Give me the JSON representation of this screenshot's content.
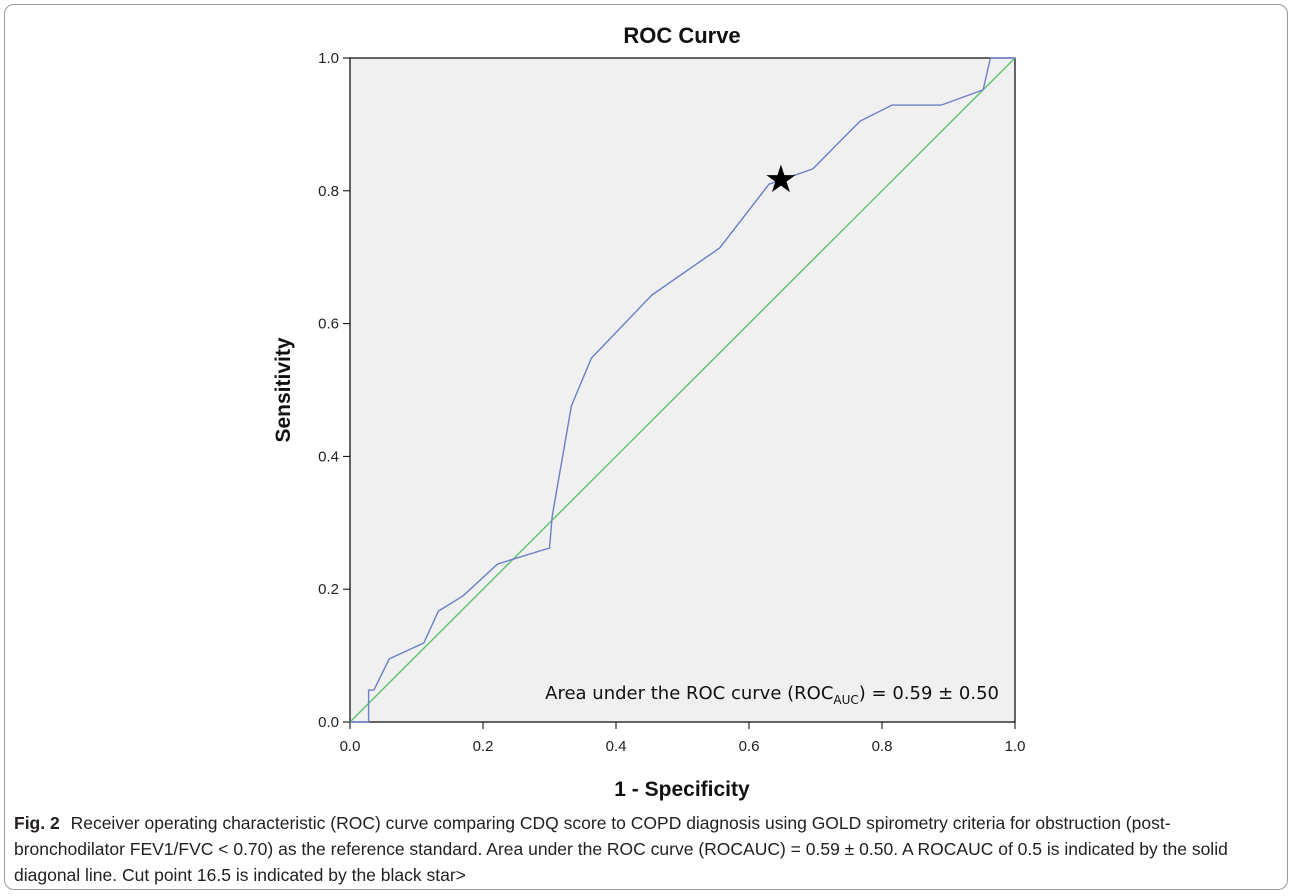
{
  "chart_data": {
    "type": "line",
    "title": "ROC Curve",
    "xlabel": "1 - Specificity",
    "ylabel": "Sensitivity",
    "xlim": [
      0,
      1
    ],
    "ylim": [
      0,
      1
    ],
    "x_ticks": [
      "0.0",
      "0.2",
      "0.4",
      "0.6",
      "0.8",
      "1.0"
    ],
    "y_ticks": [
      "0.0",
      "0.2",
      "0.4",
      "0.6",
      "0.8",
      "1.0"
    ],
    "plot_background": "#f0f0f0",
    "grid": false,
    "series": [
      {
        "color": "#6b7fc8",
        "x": [
          0,
          0.028,
          0.028,
          0.036,
          0.059,
          0.111,
          0.133,
          0.17,
          0.222,
          0.3,
          0.304,
          0.333,
          0.363,
          0.454,
          0.556,
          0.63,
          0.696,
          0.767,
          0.815,
          0.889,
          0.952,
          0.963,
          1.0
        ],
        "y": [
          0,
          0,
          0.048,
          0.048,
          0.095,
          0.119,
          0.167,
          0.19,
          0.238,
          0.262,
          0.31,
          0.476,
          0.548,
          0.643,
          0.714,
          0.81,
          0.833,
          0.905,
          0.929,
          0.929,
          0.952,
          1.0,
          1.0
        ]
      },
      {
        "color": "#5ac46a",
        "x": [
          0,
          1
        ],
        "y": [
          0,
          1
        ]
      }
    ],
    "marker": {
      "symbol": "★",
      "x": 0.648,
      "y": 0.818,
      "color": "#000000"
    },
    "annotation_prefix": "Area under the ROC curve (ROC",
    "annotation_sub": "AUC",
    "annotation_suffix": ") = 0.59 ± 0.50"
  },
  "caption": {
    "label": "Fig. 2",
    "text": "Receiver operating characteristic (ROC) curve comparing CDQ score to COPD diagnosis using GOLD spirometry criteria for obstruction (post-bronchodilator FEV1/FVC < 0.70) as the reference standard. Area under the ROC curve (ROCAUC) = 0.59 ± 0.50. A ROCAUC of 0.5 is indicated by the solid diagonal line. Cut point 16.5 is indicated by the black star>"
  }
}
